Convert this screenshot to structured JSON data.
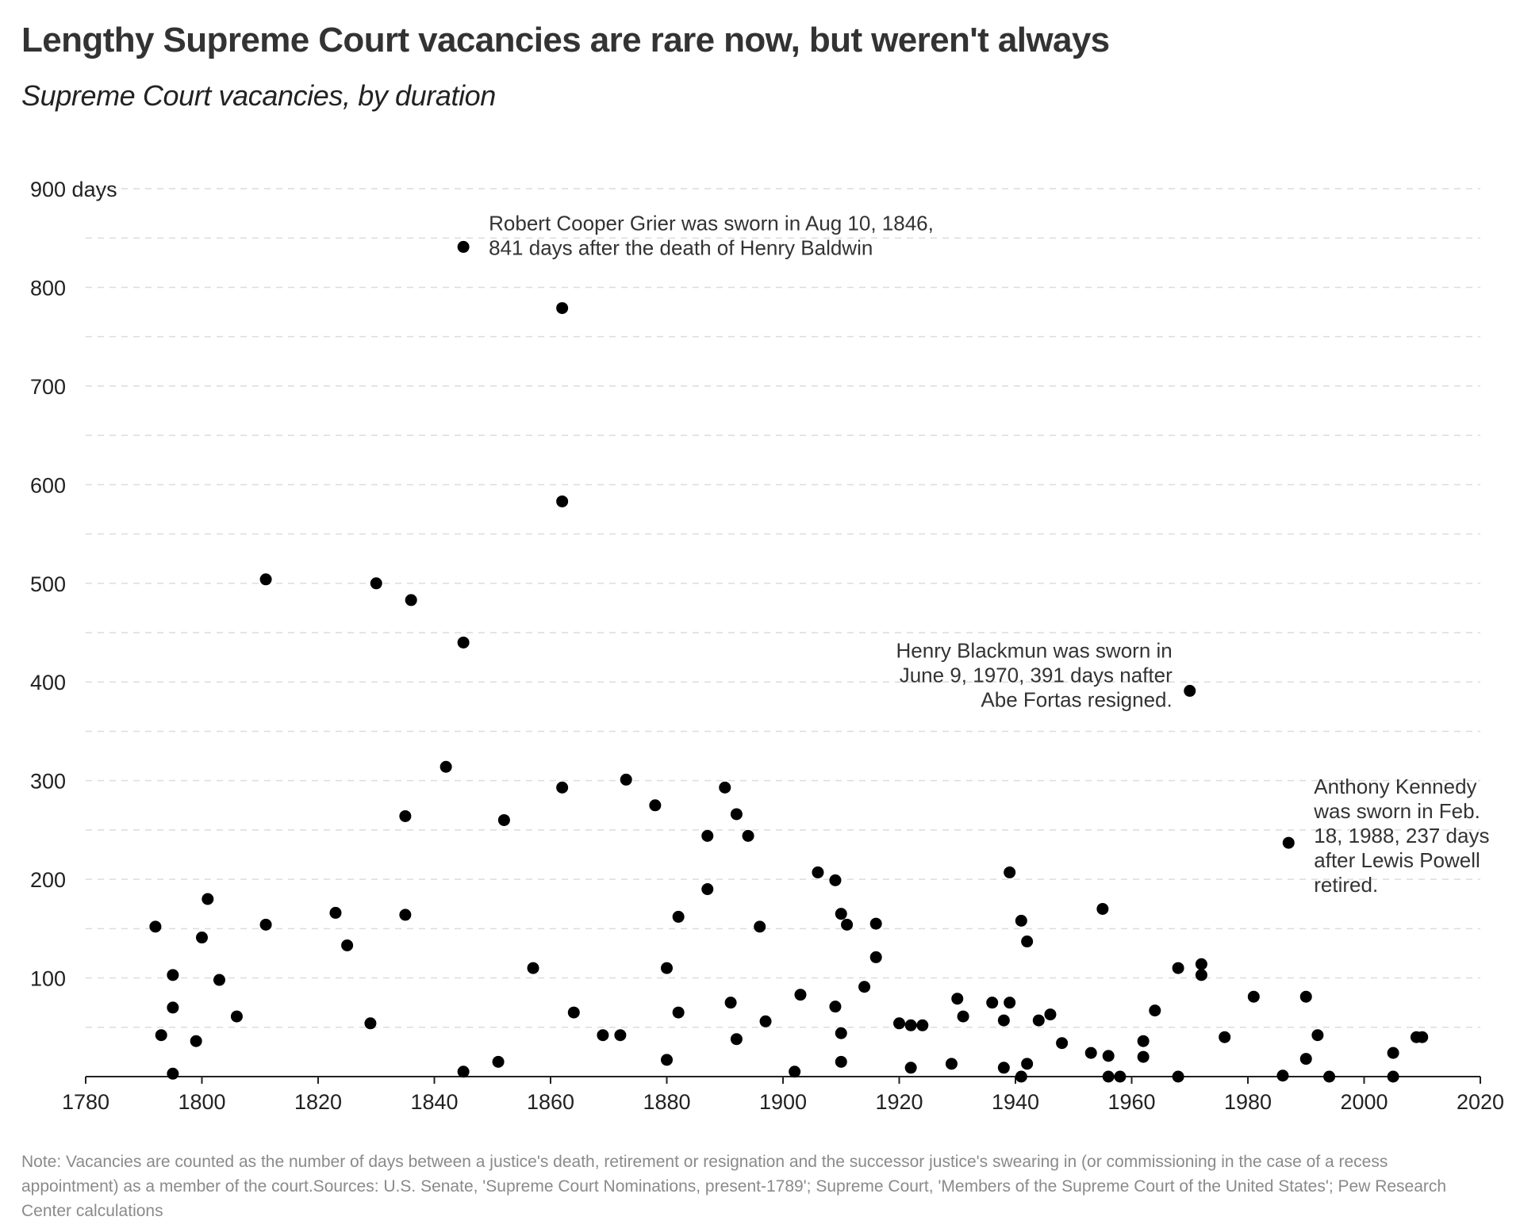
{
  "title": "Lengthy Supreme Court vacancies are rare now, but weren't always",
  "subtitle": "Supreme Court vacancies, by duration",
  "note": "Note: Vacancies are counted as the number of days between a justice's death, retirement or resignation and the successor justice's swearing in (or commissioning in the case of a recess appointment) as a member of the court.Sources: U.S. Senate, 'Supreme Court Nominations, present-1789'; Supreme Court, 'Members of the Supreme Court of the United States'; Pew Research Center calculations",
  "chart_data": {
    "type": "scatter",
    "title": "Lengthy Supreme Court vacancies are rare now, but weren't always",
    "subtitle": "Supreme Court vacancies, by duration",
    "xlabel": "",
    "ylabel": "",
    "xlim": [
      1780,
      2020
    ],
    "ylim": [
      0,
      900
    ],
    "x_ticks": [
      1780,
      1800,
      1820,
      1840,
      1860,
      1880,
      1900,
      1920,
      1940,
      1960,
      1980,
      2000,
      2020
    ],
    "y_ticks": [
      100,
      200,
      300,
      400,
      500,
      600,
      700,
      800,
      900
    ],
    "y_tick_labels": [
      "100",
      "200",
      "300",
      "400",
      "500",
      "600",
      "700",
      "800",
      "900 days"
    ],
    "grid": "horizontal dashed",
    "point_color": "#000000",
    "points": [
      {
        "x": 1792,
        "y": 152
      },
      {
        "x": 1793,
        "y": 42
      },
      {
        "x": 1795,
        "y": 103
      },
      {
        "x": 1795,
        "y": 70
      },
      {
        "x": 1795,
        "y": 3
      },
      {
        "x": 1799,
        "y": 36
      },
      {
        "x": 1800,
        "y": 141
      },
      {
        "x": 1801,
        "y": 180
      },
      {
        "x": 1803,
        "y": 98
      },
      {
        "x": 1806,
        "y": 61
      },
      {
        "x": 1811,
        "y": 504
      },
      {
        "x": 1811,
        "y": 154
      },
      {
        "x": 1823,
        "y": 166
      },
      {
        "x": 1825,
        "y": 133
      },
      {
        "x": 1829,
        "y": 54
      },
      {
        "x": 1830,
        "y": 500
      },
      {
        "x": 1835,
        "y": 264
      },
      {
        "x": 1835,
        "y": 164
      },
      {
        "x": 1836,
        "y": 483
      },
      {
        "x": 1842,
        "y": 314
      },
      {
        "x": 1845,
        "y": 841
      },
      {
        "x": 1845,
        "y": 440
      },
      {
        "x": 1845,
        "y": 5
      },
      {
        "x": 1851,
        "y": 15
      },
      {
        "x": 1852,
        "y": 260
      },
      {
        "x": 1857,
        "y": 110
      },
      {
        "x": 1862,
        "y": 779
      },
      {
        "x": 1862,
        "y": 583
      },
      {
        "x": 1862,
        "y": 293
      },
      {
        "x": 1864,
        "y": 65
      },
      {
        "x": 1869,
        "y": 42
      },
      {
        "x": 1872,
        "y": 42
      },
      {
        "x": 1873,
        "y": 301
      },
      {
        "x": 1878,
        "y": 275
      },
      {
        "x": 1880,
        "y": 110
      },
      {
        "x": 1880,
        "y": 17
      },
      {
        "x": 1882,
        "y": 162
      },
      {
        "x": 1882,
        "y": 65
      },
      {
        "x": 1887,
        "y": 244
      },
      {
        "x": 1887,
        "y": 190
      },
      {
        "x": 1890,
        "y": 293
      },
      {
        "x": 1891,
        "y": 75
      },
      {
        "x": 1892,
        "y": 266
      },
      {
        "x": 1892,
        "y": 38
      },
      {
        "x": 1894,
        "y": 244
      },
      {
        "x": 1896,
        "y": 152
      },
      {
        "x": 1897,
        "y": 56
      },
      {
        "x": 1902,
        "y": 5
      },
      {
        "x": 1903,
        "y": 83
      },
      {
        "x": 1906,
        "y": 207
      },
      {
        "x": 1909,
        "y": 199
      },
      {
        "x": 1909,
        "y": 71
      },
      {
        "x": 1910,
        "y": 165
      },
      {
        "x": 1910,
        "y": 44
      },
      {
        "x": 1910,
        "y": 15
      },
      {
        "x": 1911,
        "y": 154
      },
      {
        "x": 1914,
        "y": 91
      },
      {
        "x": 1916,
        "y": 155
      },
      {
        "x": 1916,
        "y": 121
      },
      {
        "x": 1920,
        "y": 54
      },
      {
        "x": 1922,
        "y": 52
      },
      {
        "x": 1922,
        "y": 9
      },
      {
        "x": 1924,
        "y": 52
      },
      {
        "x": 1929,
        "y": 13
      },
      {
        "x": 1930,
        "y": 79
      },
      {
        "x": 1931,
        "y": 61
      },
      {
        "x": 1936,
        "y": 75
      },
      {
        "x": 1938,
        "y": 57
      },
      {
        "x": 1938,
        "y": 9
      },
      {
        "x": 1939,
        "y": 207
      },
      {
        "x": 1939,
        "y": 75
      },
      {
        "x": 1941,
        "y": 158
      },
      {
        "x": 1941,
        "y": 0
      },
      {
        "x": 1942,
        "y": 137
      },
      {
        "x": 1942,
        "y": 13
      },
      {
        "x": 1944,
        "y": 57
      },
      {
        "x": 1946,
        "y": 63
      },
      {
        "x": 1948,
        "y": 34
      },
      {
        "x": 1953,
        "y": 24
      },
      {
        "x": 1955,
        "y": 170
      },
      {
        "x": 1956,
        "y": 21
      },
      {
        "x": 1956,
        "y": 0
      },
      {
        "x": 1958,
        "y": 0
      },
      {
        "x": 1962,
        "y": 36
      },
      {
        "x": 1962,
        "y": 20
      },
      {
        "x": 1964,
        "y": 67
      },
      {
        "x": 1968,
        "y": 110
      },
      {
        "x": 1968,
        "y": 0
      },
      {
        "x": 1970,
        "y": 391
      },
      {
        "x": 1972,
        "y": 114
      },
      {
        "x": 1972,
        "y": 103
      },
      {
        "x": 1976,
        "y": 40
      },
      {
        "x": 1981,
        "y": 81
      },
      {
        "x": 1986,
        "y": 1
      },
      {
        "x": 1987,
        "y": 237
      },
      {
        "x": 1990,
        "y": 81
      },
      {
        "x": 1990,
        "y": 18
      },
      {
        "x": 1992,
        "y": 42
      },
      {
        "x": 1994,
        "y": 0
      },
      {
        "x": 2005,
        "y": 24
      },
      {
        "x": 2005,
        "y": 0
      },
      {
        "x": 2009,
        "y": 40
      },
      {
        "x": 2010,
        "y": 40
      }
    ],
    "annotations": [
      {
        "text_lines": [
          "Robert Cooper Grier was sworn in Aug 10, 1846,",
          "841 days after the death of Henry Baldwin"
        ],
        "point_x": 1845,
        "point_y": 841
      },
      {
        "text_lines": [
          "Henry Blackmun was sworn in",
          "June 9, 1970, 391 days nafter",
          "Abe Fortas resigned."
        ],
        "point_x": 1970,
        "point_y": 391
      },
      {
        "text_lines": [
          "Anthony Kennedy",
          "was sworn in Feb.",
          "18, 1988, 237 days",
          "after Lewis Powell",
          "retired."
        ],
        "point_x": 1987,
        "point_y": 237
      }
    ]
  }
}
